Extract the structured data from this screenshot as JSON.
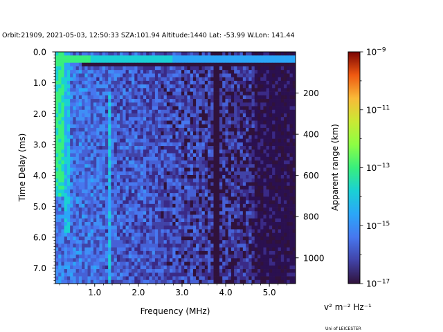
{
  "chart_data": {
    "type": "heatmap",
    "title": "Orbit:21909, 2021-05-03, 12:50:33 SZA:101.94 Altitude:1440 Lat: -53.99 W.Lon: 141.44",
    "xlabel": "Frequency (MHz)",
    "ylabel": "Time Delay (ms)",
    "y2label": "Apparent range (km)",
    "xlim": [
      0.1,
      5.6
    ],
    "ylim": [
      7.5,
      0.0
    ],
    "y2lim": [
      0,
      1125
    ],
    "xticks": [
      {
        "v": 1.0,
        "label": "1.0"
      },
      {
        "v": 2.0,
        "label": "2.0"
      },
      {
        "v": 3.0,
        "label": "3.0"
      },
      {
        "v": 4.0,
        "label": "4.0"
      },
      {
        "v": 5.0,
        "label": "5.0"
      }
    ],
    "yticks": [
      {
        "v": 0.0,
        "label": "0.0"
      },
      {
        "v": 1.0,
        "label": "1.0"
      },
      {
        "v": 2.0,
        "label": "2.0"
      },
      {
        "v": 3.0,
        "label": "3.0"
      },
      {
        "v": 4.0,
        "label": "4.0"
      },
      {
        "v": 5.0,
        "label": "5.0"
      },
      {
        "v": 6.0,
        "label": "6.0"
      },
      {
        "v": 7.0,
        "label": "7.0"
      }
    ],
    "y2ticks": [
      {
        "v": 200,
        "label": "200"
      },
      {
        "v": 400,
        "label": "400"
      },
      {
        "v": 600,
        "label": "600"
      },
      {
        "v": 800,
        "label": "800"
      },
      {
        "v": 1000,
        "label": "1000"
      }
    ],
    "colorbar": {
      "scale": "log",
      "range": [
        -17,
        -9
      ],
      "colormap": "turbo",
      "unit_label": "v² m⁻² Hz⁻¹",
      "ticks": [
        {
          "exp": -9,
          "base": "10",
          "sup": "−9"
        },
        {
          "exp": -11,
          "base": "10",
          "sup": "−11"
        },
        {
          "exp": -13,
          "base": "10",
          "sup": "−13"
        },
        {
          "exp": -15,
          "base": "10",
          "sup": "−15"
        },
        {
          "exp": -17,
          "base": "10",
          "sup": "−17"
        }
      ]
    }
  },
  "footer": {
    "credit": "Uni of LEICESTER"
  }
}
